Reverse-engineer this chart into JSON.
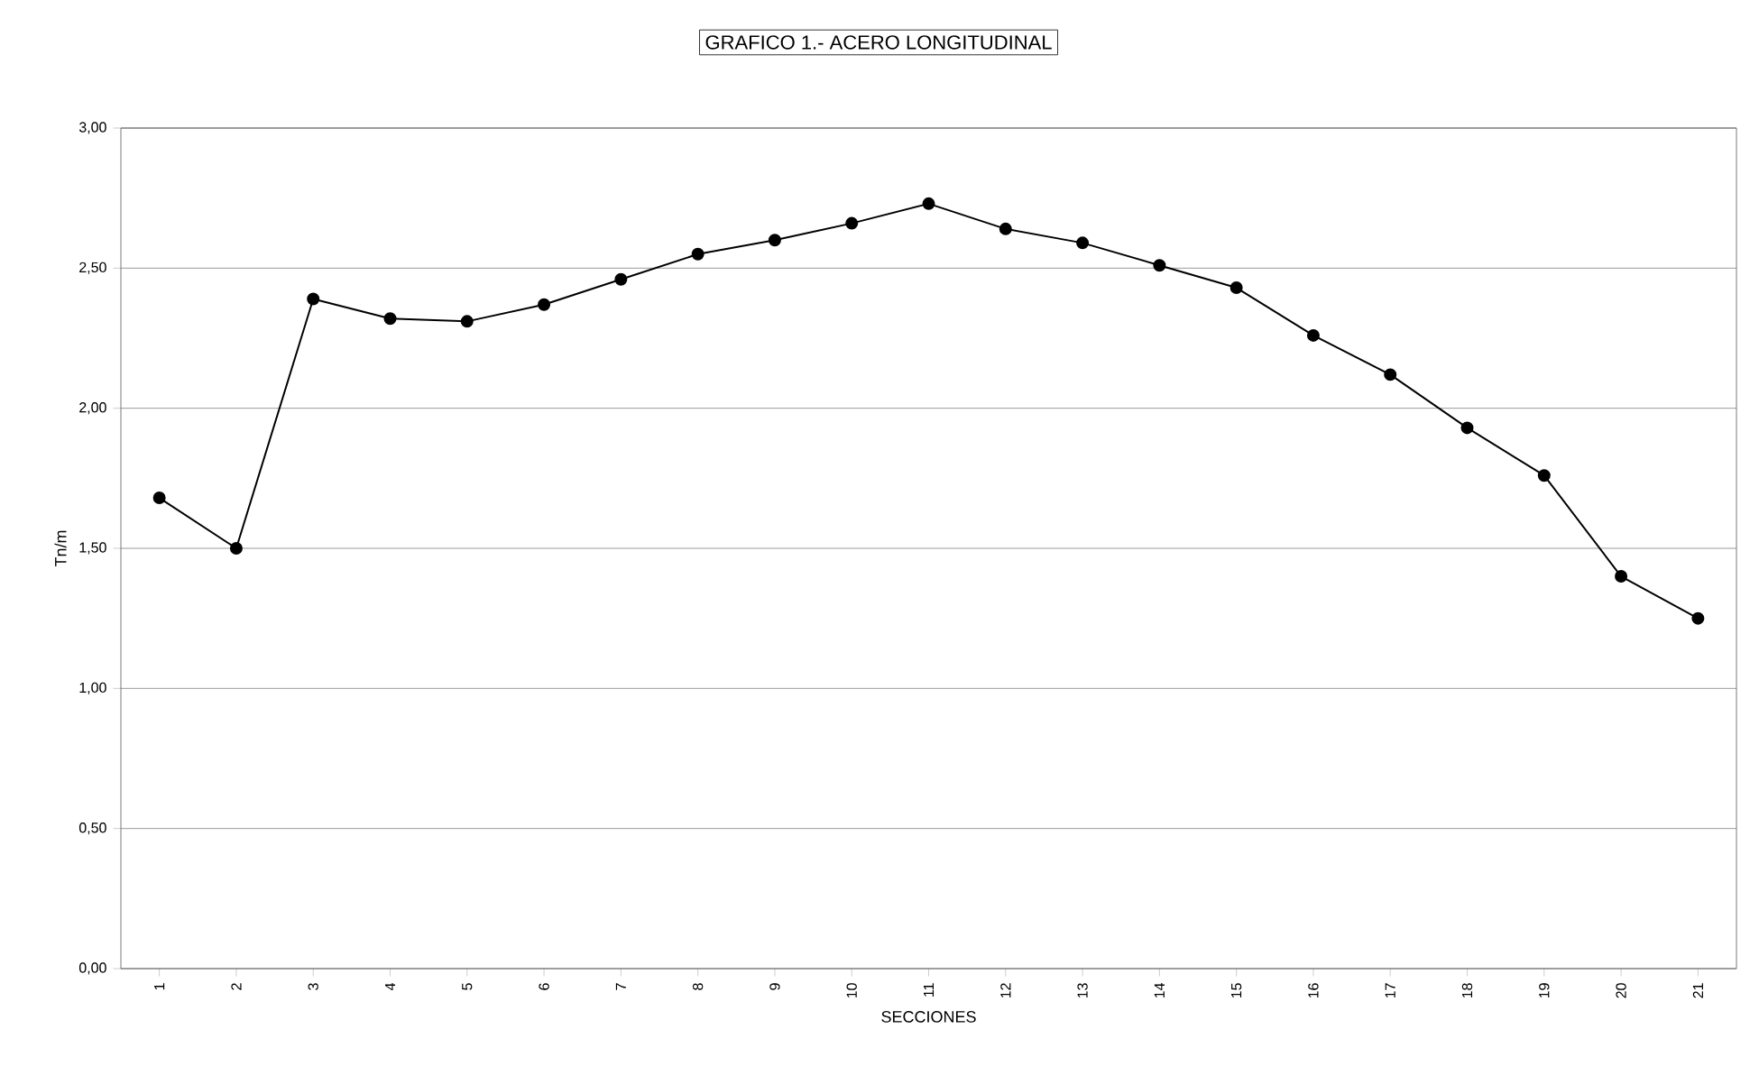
{
  "chart_data": {
    "type": "line",
    "title": "GRAFICO 1.- ACERO LONGITUDINAL",
    "xlabel": "SECCIONES",
    "ylabel": "Tn/m",
    "categories": [
      "1",
      "2",
      "3",
      "4",
      "5",
      "6",
      "7",
      "8",
      "9",
      "10",
      "11",
      "12",
      "13",
      "14",
      "15",
      "16",
      "17",
      "18",
      "19",
      "20",
      "21"
    ],
    "values": [
      1.68,
      1.5,
      2.39,
      2.32,
      2.31,
      2.37,
      2.46,
      2.55,
      2.6,
      2.66,
      2.73,
      2.64,
      2.59,
      2.51,
      2.43,
      2.26,
      2.12,
      1.93,
      1.76,
      1.4,
      1.25
    ],
    "color": "#000000",
    "marker": "circle",
    "line_style": "solid",
    "grid": "y",
    "ylim": [
      0,
      3
    ],
    "yticks": [
      {
        "value": 0,
        "label": "0,00"
      },
      {
        "value": 0.5,
        "label": "0,50"
      },
      {
        "value": 1,
        "label": "1,00"
      },
      {
        "value": 1.5,
        "label": "1,50"
      },
      {
        "value": 2,
        "label": "2,00"
      },
      {
        "value": 2.5,
        "label": "2,50"
      },
      {
        "value": 3,
        "label": "3,00"
      }
    ]
  }
}
